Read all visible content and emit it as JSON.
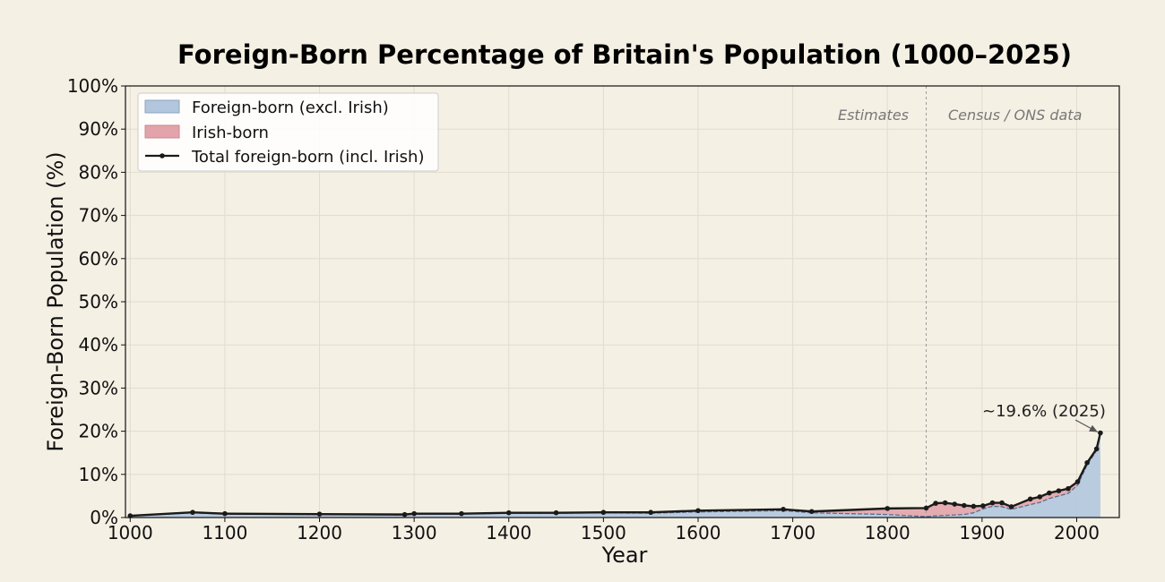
{
  "chart_data": {
    "type": "area",
    "title": "Foreign-Born Percentage of Britain's Population (1000–2025)",
    "xlabel": "Year",
    "ylabel": "Foreign-Born Population (%)",
    "xlim": [
      995,
      2045
    ],
    "ylim": [
      0,
      100
    ],
    "xticks": [
      "1000",
      "1100",
      "1200",
      "1300",
      "1400",
      "1500",
      "1600",
      "1700",
      "1800",
      "1900",
      "2000"
    ],
    "yticks": [
      "0%",
      "10%",
      "20%",
      "30%",
      "40%",
      "50%",
      "60%",
      "70%",
      "80%",
      "90%",
      "100%"
    ],
    "grid": true,
    "legend_position": "top-left",
    "colors": {
      "background": "#f5f0e4",
      "foreign_fill": "#b2c7de",
      "irish_fill": "#e2a4aa",
      "total_line": "#1a1a1a",
      "foreign_edge": "#5a6f93"
    },
    "legend": {
      "foreign": "Foreign-born (excl. Irish)",
      "irish": "Irish-born",
      "total": "Total foreign-born (incl. Irish)"
    },
    "regions": {
      "divider_x": 1841,
      "left": "Estimates",
      "right": "Census / ONS data"
    },
    "annotation": {
      "text": "~19.6% (2025)",
      "x": 2025,
      "y": 19.6
    },
    "series": [
      {
        "name": "Total foreign-born (incl. Irish)",
        "x": [
          1000,
          1066,
          1100,
          1200,
          1290,
          1300,
          1350,
          1400,
          1450,
          1500,
          1550,
          1600,
          1690,
          1720,
          1800,
          1841,
          1851,
          1861,
          1871,
          1881,
          1891,
          1901,
          1911,
          1921,
          1931,
          1951,
          1961,
          1971,
          1981,
          1991,
          2001,
          2011,
          2021,
          2025
        ],
        "values": [
          0.4,
          1.2,
          0.9,
          0.8,
          0.7,
          0.9,
          0.9,
          1.1,
          1.1,
          1.2,
          1.2,
          1.6,
          1.9,
          1.4,
          2.1,
          2.2,
          3.3,
          3.4,
          3.1,
          2.8,
          2.6,
          2.7,
          3.4,
          3.4,
          2.5,
          4.3,
          4.8,
          5.7,
          6.2,
          6.7,
          8.3,
          12.7,
          15.9,
          19.6
        ]
      },
      {
        "name": "Foreign-born (excl. Irish)",
        "x": [
          1000,
          1066,
          1100,
          1200,
          1290,
          1300,
          1350,
          1400,
          1450,
          1500,
          1550,
          1600,
          1690,
          1720,
          1800,
          1841,
          1851,
          1861,
          1871,
          1881,
          1891,
          1901,
          1911,
          1921,
          1931,
          1951,
          1961,
          1971,
          1981,
          1991,
          2001,
          2011,
          2021,
          2025
        ],
        "values": [
          0.4,
          1.1,
          0.8,
          0.7,
          0.6,
          0.8,
          0.8,
          1.0,
          1.0,
          1.1,
          1.0,
          1.3,
          1.6,
          1.1,
          0.7,
          0.2,
          0.4,
          0.5,
          0.6,
          0.7,
          1.1,
          2.0,
          2.6,
          2.5,
          1.9,
          3.0,
          3.5,
          4.4,
          5.0,
          5.6,
          7.5,
          12.2,
          15.5,
          19.2
        ]
      }
    ]
  }
}
